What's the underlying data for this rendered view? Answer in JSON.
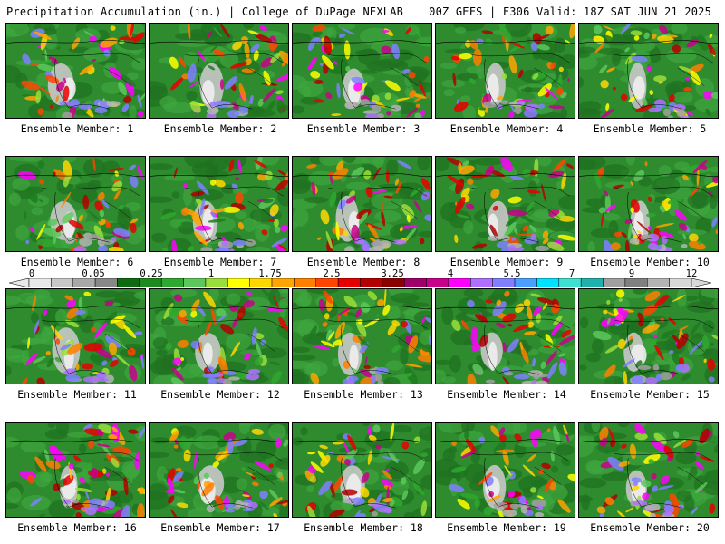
{
  "header": {
    "left": "Precipitation Accumulation (in.) | College of DuPage NEXLAB",
    "right": "00Z GEFS | F306 Valid: 18Z SAT JUN 21 2025"
  },
  "colorbar": {
    "tick_labels": [
      "0",
      "0.05",
      "0.25",
      "1",
      "1.75",
      "2.5",
      "3.25",
      "4",
      "5.5",
      "7",
      "9",
      "12"
    ],
    "colors": [
      "#e8e8e8",
      "#c8c8c8",
      "#a8a8a8",
      "#888888",
      "#0f6b0f",
      "#1d8a1d",
      "#2ea82e",
      "#5cc85c",
      "#9ade3a",
      "#ffff00",
      "#ffd700",
      "#ffa500",
      "#ff7f00",
      "#ff4500",
      "#e60000",
      "#b40000",
      "#8b0000",
      "#a0006a",
      "#c8008c",
      "#ff00ff",
      "#b070ff",
      "#7f7fff",
      "#4aa0ff",
      "#00e0ff",
      "#40e0d0",
      "#20b2aa",
      "#a0a0a0",
      "#808080",
      "#b4b4b4",
      "#d8d8d8"
    ]
  },
  "members": [
    {
      "label": "Ensemble Member: 1"
    },
    {
      "label": "Ensemble Member: 2"
    },
    {
      "label": "Ensemble Member: 3"
    },
    {
      "label": "Ensemble Member: 4"
    },
    {
      "label": "Ensemble Member: 5"
    },
    {
      "label": "Ensemble Member: 6"
    },
    {
      "label": "Ensemble Member: 7"
    },
    {
      "label": "Ensemble Member: 8"
    },
    {
      "label": "Ensemble Member: 9"
    },
    {
      "label": "Ensemble Member: 10"
    },
    {
      "label": "Ensemble Member: 11"
    },
    {
      "label": "Ensemble Member: 12"
    },
    {
      "label": "Ensemble Member: 13"
    },
    {
      "label": "Ensemble Member: 14"
    },
    {
      "label": "Ensemble Member: 15"
    },
    {
      "label": "Ensemble Member: 16"
    },
    {
      "label": "Ensemble Member: 17"
    },
    {
      "label": "Ensemble Member: 18"
    },
    {
      "label": "Ensemble Member: 19"
    },
    {
      "label": "Ensemble Member: 20"
    }
  ]
}
